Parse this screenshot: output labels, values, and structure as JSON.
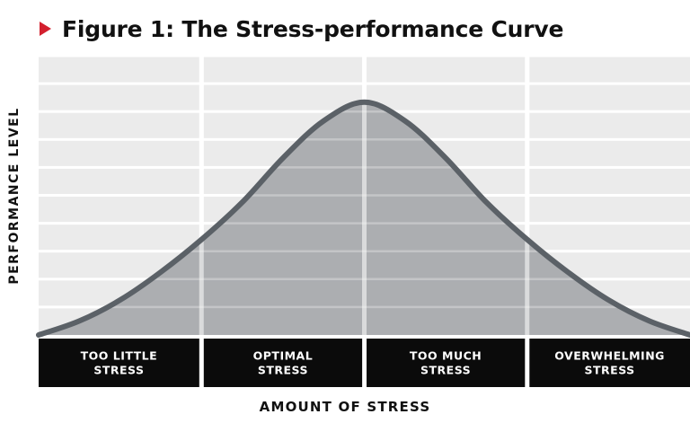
{
  "figure": {
    "title": "Figure 1: The Stress-performance Curve",
    "marker_color": "#d3202e"
  },
  "chart_data": {
    "type": "area",
    "title": "Figure 1: The Stress-performance Curve",
    "xlabel": "AMOUNT OF STRESS",
    "ylabel": "PERFORMANCE LEVEL",
    "categories": [
      {
        "lines": [
          "TOO LITTLE",
          "STRESS"
        ]
      },
      {
        "lines": [
          "OPTIMAL",
          "STRESS"
        ]
      },
      {
        "lines": [
          "TOO MUCH",
          "STRESS"
        ]
      },
      {
        "lines": [
          "OVERWHELMING",
          "STRESS"
        ]
      }
    ],
    "x": [
      0,
      0.25,
      0.5,
      0.75,
      1.0,
      1.25,
      1.5,
      1.75,
      2.0,
      2.25,
      2.5,
      2.75,
      3.0,
      3.25,
      3.5,
      3.75,
      4.0
    ],
    "y": [
      0.0,
      0.06,
      0.15,
      0.27,
      0.41,
      0.57,
      0.76,
      0.92,
      1.0,
      0.92,
      0.76,
      0.57,
      0.41,
      0.27,
      0.15,
      0.06,
      0.0
    ],
    "xlim": [
      0,
      4
    ],
    "ylim": [
      0,
      1.2
    ],
    "grid": true,
    "peak_category": "OPTIMAL STRESS",
    "colors": {
      "grid_panel": "#ebebeb",
      "curve_fill": "#a7a9ac",
      "curve_line": "#5b6167",
      "category_band": "#0b0b0b"
    }
  }
}
